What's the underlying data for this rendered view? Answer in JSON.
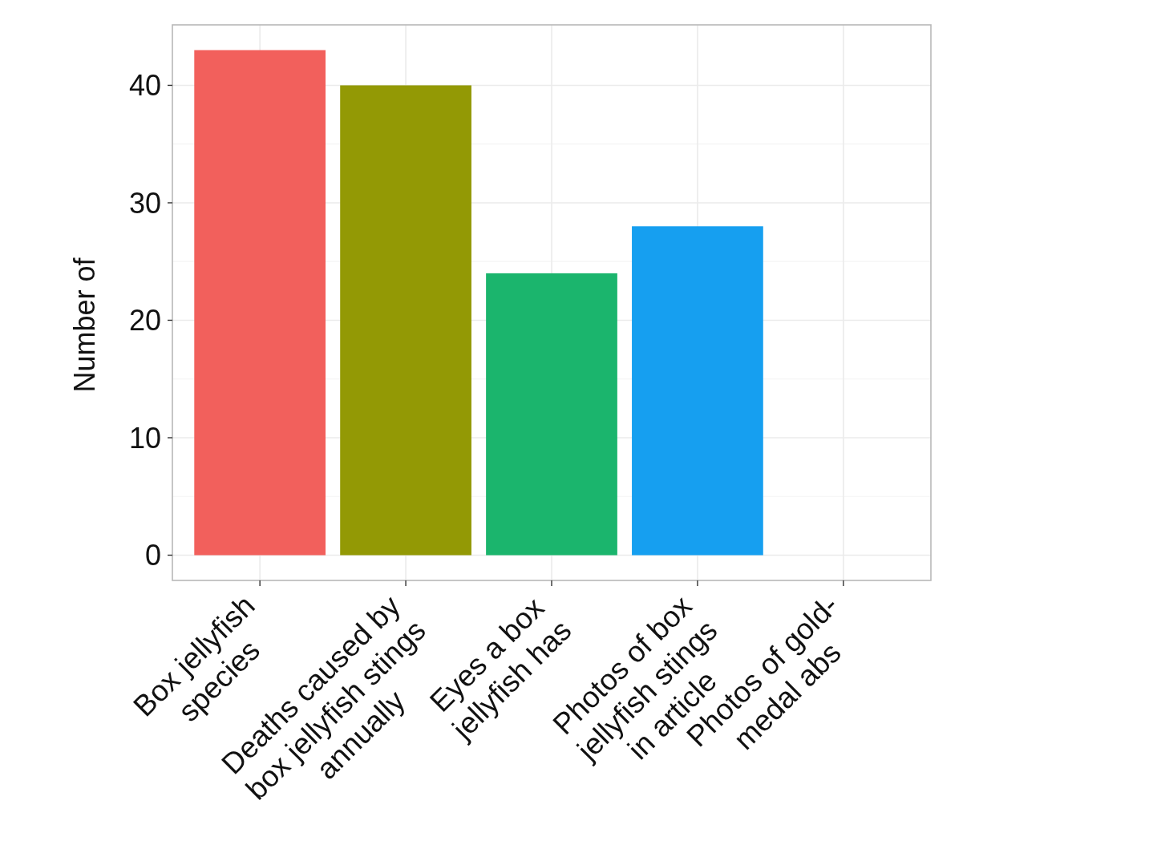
{
  "chart_data": {
    "type": "bar",
    "ylabel": "Number of",
    "categories": [
      "Box jellyfish\nspecies",
      "Deaths caused by\nbox jellyfish stings\nannually",
      "Eyes a box\njellyfish has",
      "Photos of box\njellyfish stings\nin article",
      "Photos of gold-\nmedal abs"
    ],
    "values": [
      43,
      40,
      24,
      28,
      0
    ],
    "colors": [
      "#f2605c",
      "#939905",
      "#1bb56d",
      "#169ff0",
      null
    ],
    "ylim": [
      -2.15,
      45.15
    ],
    "yticks": [
      0,
      {
        "value": 5,
        "label": null
      },
      10,
      {
        "value": 15,
        "label": null
      },
      20,
      {
        "value": 25,
        "label": null
      },
      30,
      {
        "value": 35,
        "label": null
      },
      40
    ],
    "grid": true
  }
}
